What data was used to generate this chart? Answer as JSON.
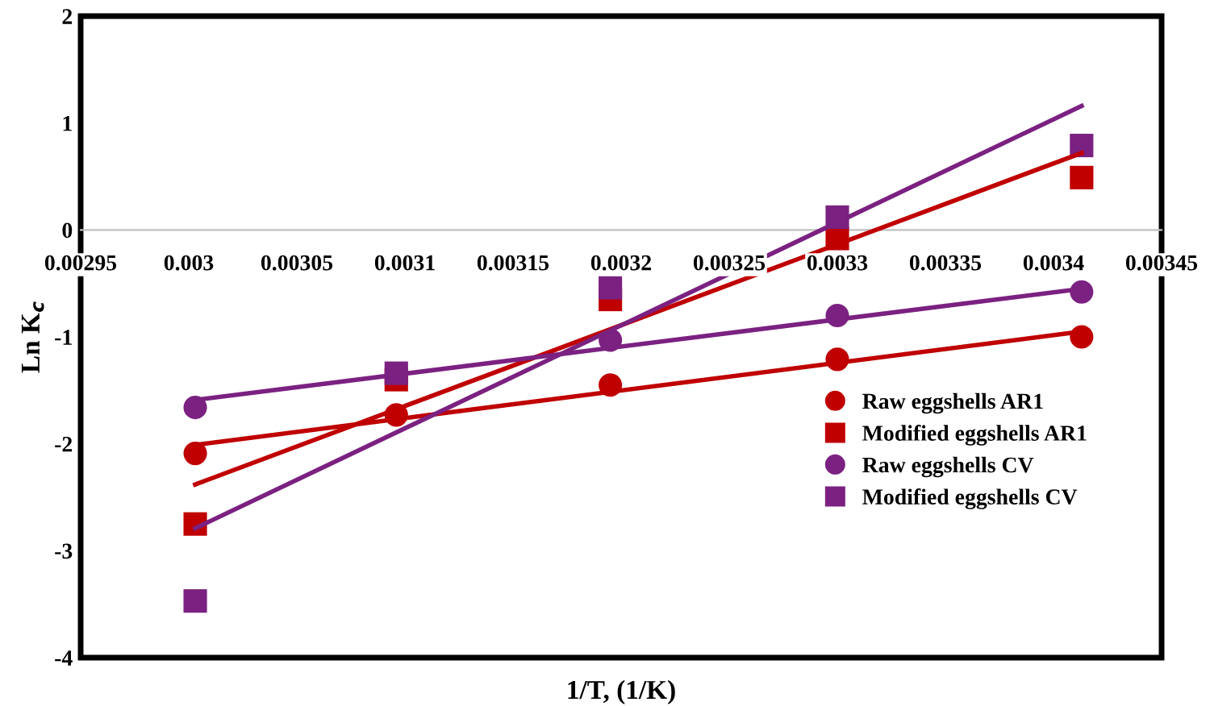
{
  "chart_data": {
    "type": "scatter",
    "xlabel": "1/T, (1/K)",
    "ylabel": "Ln K$_{c}$",
    "x": [
      0.003003,
      0.003096,
      0.003195,
      0.0033,
      0.003413
    ],
    "series": [
      {
        "name": "Raw eggshells AR1",
        "color": "#c00000",
        "marker": "circle",
        "values": [
          -2.09,
          -1.73,
          -1.45,
          -1.21,
          -1.0
        ]
      },
      {
        "name": "Modified eggshells AR1",
        "color": "#c00000",
        "marker": "square",
        "values": [
          -2.75,
          -1.4,
          -0.65,
          -0.08,
          0.49
        ]
      },
      {
        "name": "Raw eggshells CV",
        "color": "#7b2181",
        "marker": "circle",
        "values": [
          -1.66,
          null,
          -1.03,
          -0.8,
          -0.58
        ]
      },
      {
        "name": "Modified eggshells CV",
        "color": "#7b2181",
        "marker": "square",
        "values": [
          -3.47,
          -1.34,
          -0.54,
          0.12,
          0.79
        ]
      },
      {
        "type": "line",
        "color": "#c00000",
        "marker": "none",
        "values": [
          -2.01,
          null,
          null,
          null,
          -0.95
        ]
      },
      {
        "type": "line",
        "color": "#c00000",
        "marker": "none",
        "values": [
          -2.38,
          null,
          null,
          null,
          0.72
        ]
      },
      {
        "type": "line",
        "color": "#7b2181",
        "marker": "none",
        "values": [
          -1.59,
          null,
          null,
          null,
          -0.55
        ]
      },
      {
        "type": "line",
        "color": "#7b2181",
        "marker": "none",
        "values": [
          -2.79,
          null,
          null,
          null,
          1.16
        ]
      }
    ],
    "xlim": [
      0.00295,
      0.00345
    ],
    "xticks": [
      0.00295,
      0.003,
      0.00305,
      0.0031,
      0.00315,
      0.0032,
      0.00325,
      0.0033,
      0.00335,
      0.0034,
      0.00345
    ],
    "ylim": [
      -4,
      2
    ],
    "yticks": [
      -4,
      -3,
      -2,
      -1,
      0,
      1,
      2
    ],
    "grid": false,
    "legend": "bottom right"
  }
}
